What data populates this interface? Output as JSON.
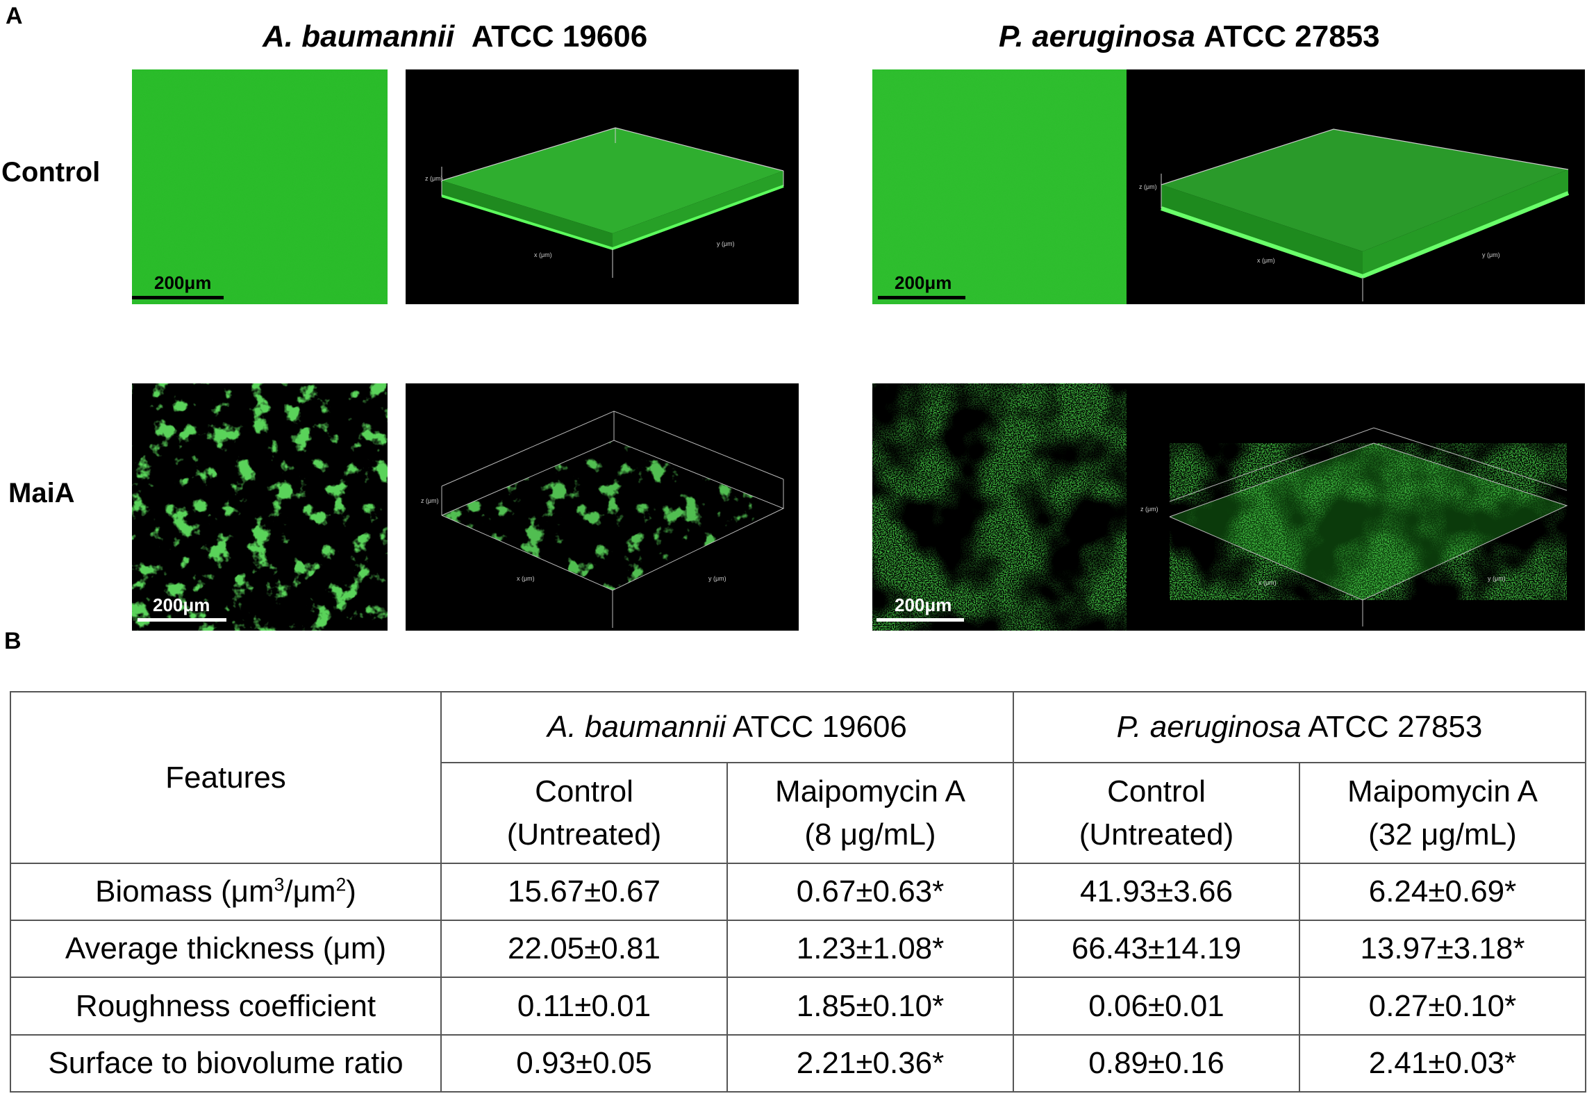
{
  "panel_a": {
    "letter": "A",
    "species": [
      {
        "italic": "A. baumannii",
        "strain": "ATCC 19606"
      },
      {
        "italic": "P. aeruginosa",
        "strain": "ATCC 27853"
      }
    ],
    "rows": [
      "Control",
      "MaiA"
    ],
    "scale_label": "200μm",
    "axis_labels": {
      "z": "z (μm)",
      "x": "x (μm)",
      "y": "y (μm)"
    },
    "colors": {
      "biofilm_green": "#2bbd2b",
      "background": "#000000"
    }
  },
  "panel_b": {
    "letter": "B",
    "header": {
      "features": "Features",
      "species": [
        {
          "italic": "A. baumannii",
          "strain": "ATCC 19606"
        },
        {
          "italic": "P. aeruginosa",
          "strain": "ATCC 27853"
        }
      ],
      "conditions": [
        {
          "line1": "Control",
          "line2": "(Untreated)"
        },
        {
          "line1": "Maipomycin A",
          "line2": "(8 μg/mL)"
        },
        {
          "line1": "Control",
          "line2": "(Untreated)"
        },
        {
          "line1": "Maipomycin A",
          "line2": "(32 μg/mL)"
        }
      ]
    },
    "rows": [
      {
        "feature_pre": "Biomass (μm",
        "sup1": "3",
        "mid": "/μm",
        "sup2": "2",
        "post": ")",
        "values": [
          "15.67±0.67",
          "0.67±0.63*",
          "41.93±3.66",
          "6.24±0.69*"
        ]
      },
      {
        "feature": "Average thickness (μm)",
        "values": [
          "22.05±0.81",
          "1.23±1.08*",
          "66.43±14.19",
          "13.97±3.18*"
        ]
      },
      {
        "feature": "Roughness coefficient",
        "values": [
          "0.11±0.01",
          "1.85±0.10*",
          "0.06±0.01",
          "0.27±0.10*"
        ]
      },
      {
        "feature": "Surface to biovolume ratio",
        "values": [
          "0.93±0.05",
          "2.21±0.36*",
          "0.89±0.16",
          "2.41±0.03*"
        ]
      }
    ]
  }
}
